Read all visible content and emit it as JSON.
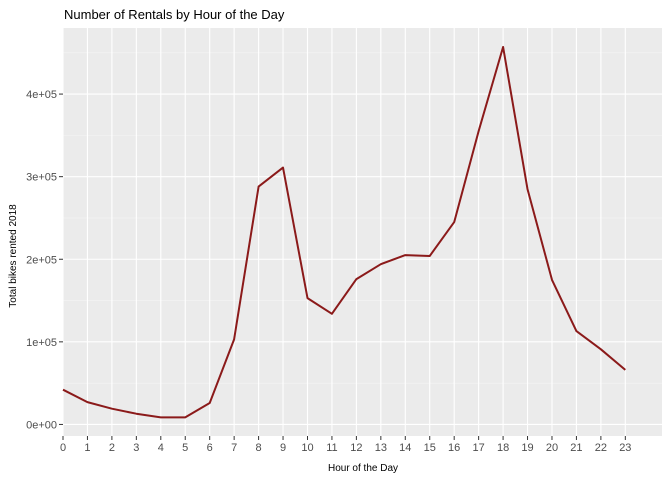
{
  "chart_data": {
    "type": "line",
    "title": "Number of Rentals by Hour of the Day",
    "xlabel": "Hour of the Day",
    "ylabel": "Total bikes rented 2018",
    "x": [
      0,
      1,
      2,
      3,
      4,
      5,
      6,
      7,
      8,
      9,
      10,
      11,
      12,
      13,
      14,
      15,
      16,
      17,
      18,
      19,
      20,
      21,
      22,
      23
    ],
    "series": [
      {
        "values": [
          42000,
          27000,
          19000,
          13000,
          8500,
          8500,
          26000,
          103000,
          288000,
          311000,
          153000,
          134000,
          176000,
          194000,
          205000,
          204000,
          245000,
          355000,
          457000,
          285000,
          175000,
          113000,
          91000,
          66000
        ]
      }
    ],
    "xticks": [
      "0",
      "1",
      "2",
      "3",
      "4",
      "5",
      "6",
      "7",
      "8",
      "9",
      "10",
      "11",
      "12",
      "13",
      "14",
      "15",
      "16",
      "17",
      "18",
      "19",
      "20",
      "21",
      "22",
      "23"
    ],
    "yticks": [
      {
        "value": 0,
        "label": "0e+00"
      },
      {
        "value": 100000,
        "label": "1e+05"
      },
      {
        "value": 200000,
        "label": "2e+05"
      },
      {
        "value": 300000,
        "label": "3e+05"
      },
      {
        "value": 400000,
        "label": "4e+05"
      }
    ],
    "xlim": [
      0,
      24.5
    ],
    "ylim": [
      -14000,
      480000
    ],
    "grid": true,
    "colors": {
      "line": "#8b1a1a",
      "panel": "#ebebeb",
      "grid_major": "#ffffff",
      "grid_minor": "#f5f5f5"
    }
  }
}
